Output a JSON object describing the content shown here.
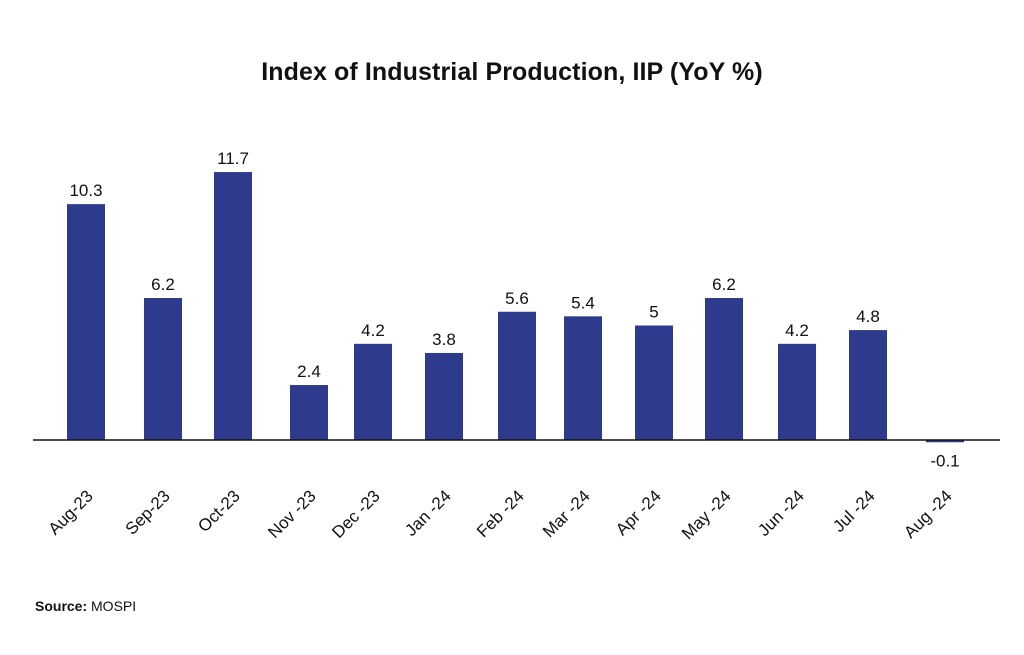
{
  "chart_data": {
    "type": "bar",
    "title": "Index of Industrial Production, IIP (YoY %)",
    "categories": [
      "Aug-23",
      "Sep-23",
      "Oct-23",
      "Nov -23",
      "Dec -23",
      "Jan -24",
      "Feb -24",
      "Mar -24",
      "Apr -24",
      "May -24",
      "Jun -24",
      "Jul -24",
      "Aug -24"
    ],
    "values": [
      10.3,
      6.2,
      11.7,
      2.4,
      4.2,
      3.8,
      5.6,
      5.4,
      5,
      6.2,
      4.2,
      4.8,
      -0.1
    ],
    "data_labels": [
      "10.3",
      "6.2",
      "11.7",
      "2.4",
      "4.2",
      "3.8",
      "5.6",
      "5.4",
      "5",
      "6.2",
      "4.2",
      "4.8",
      "-0.1"
    ],
    "xlabel": "",
    "ylabel": "",
    "ylim": [
      -0.5,
      12.5
    ],
    "grid": false,
    "legend": "none",
    "bar_color": "#2e3a8c"
  },
  "source": {
    "label": "Source:",
    "text": "MOSPI"
  }
}
